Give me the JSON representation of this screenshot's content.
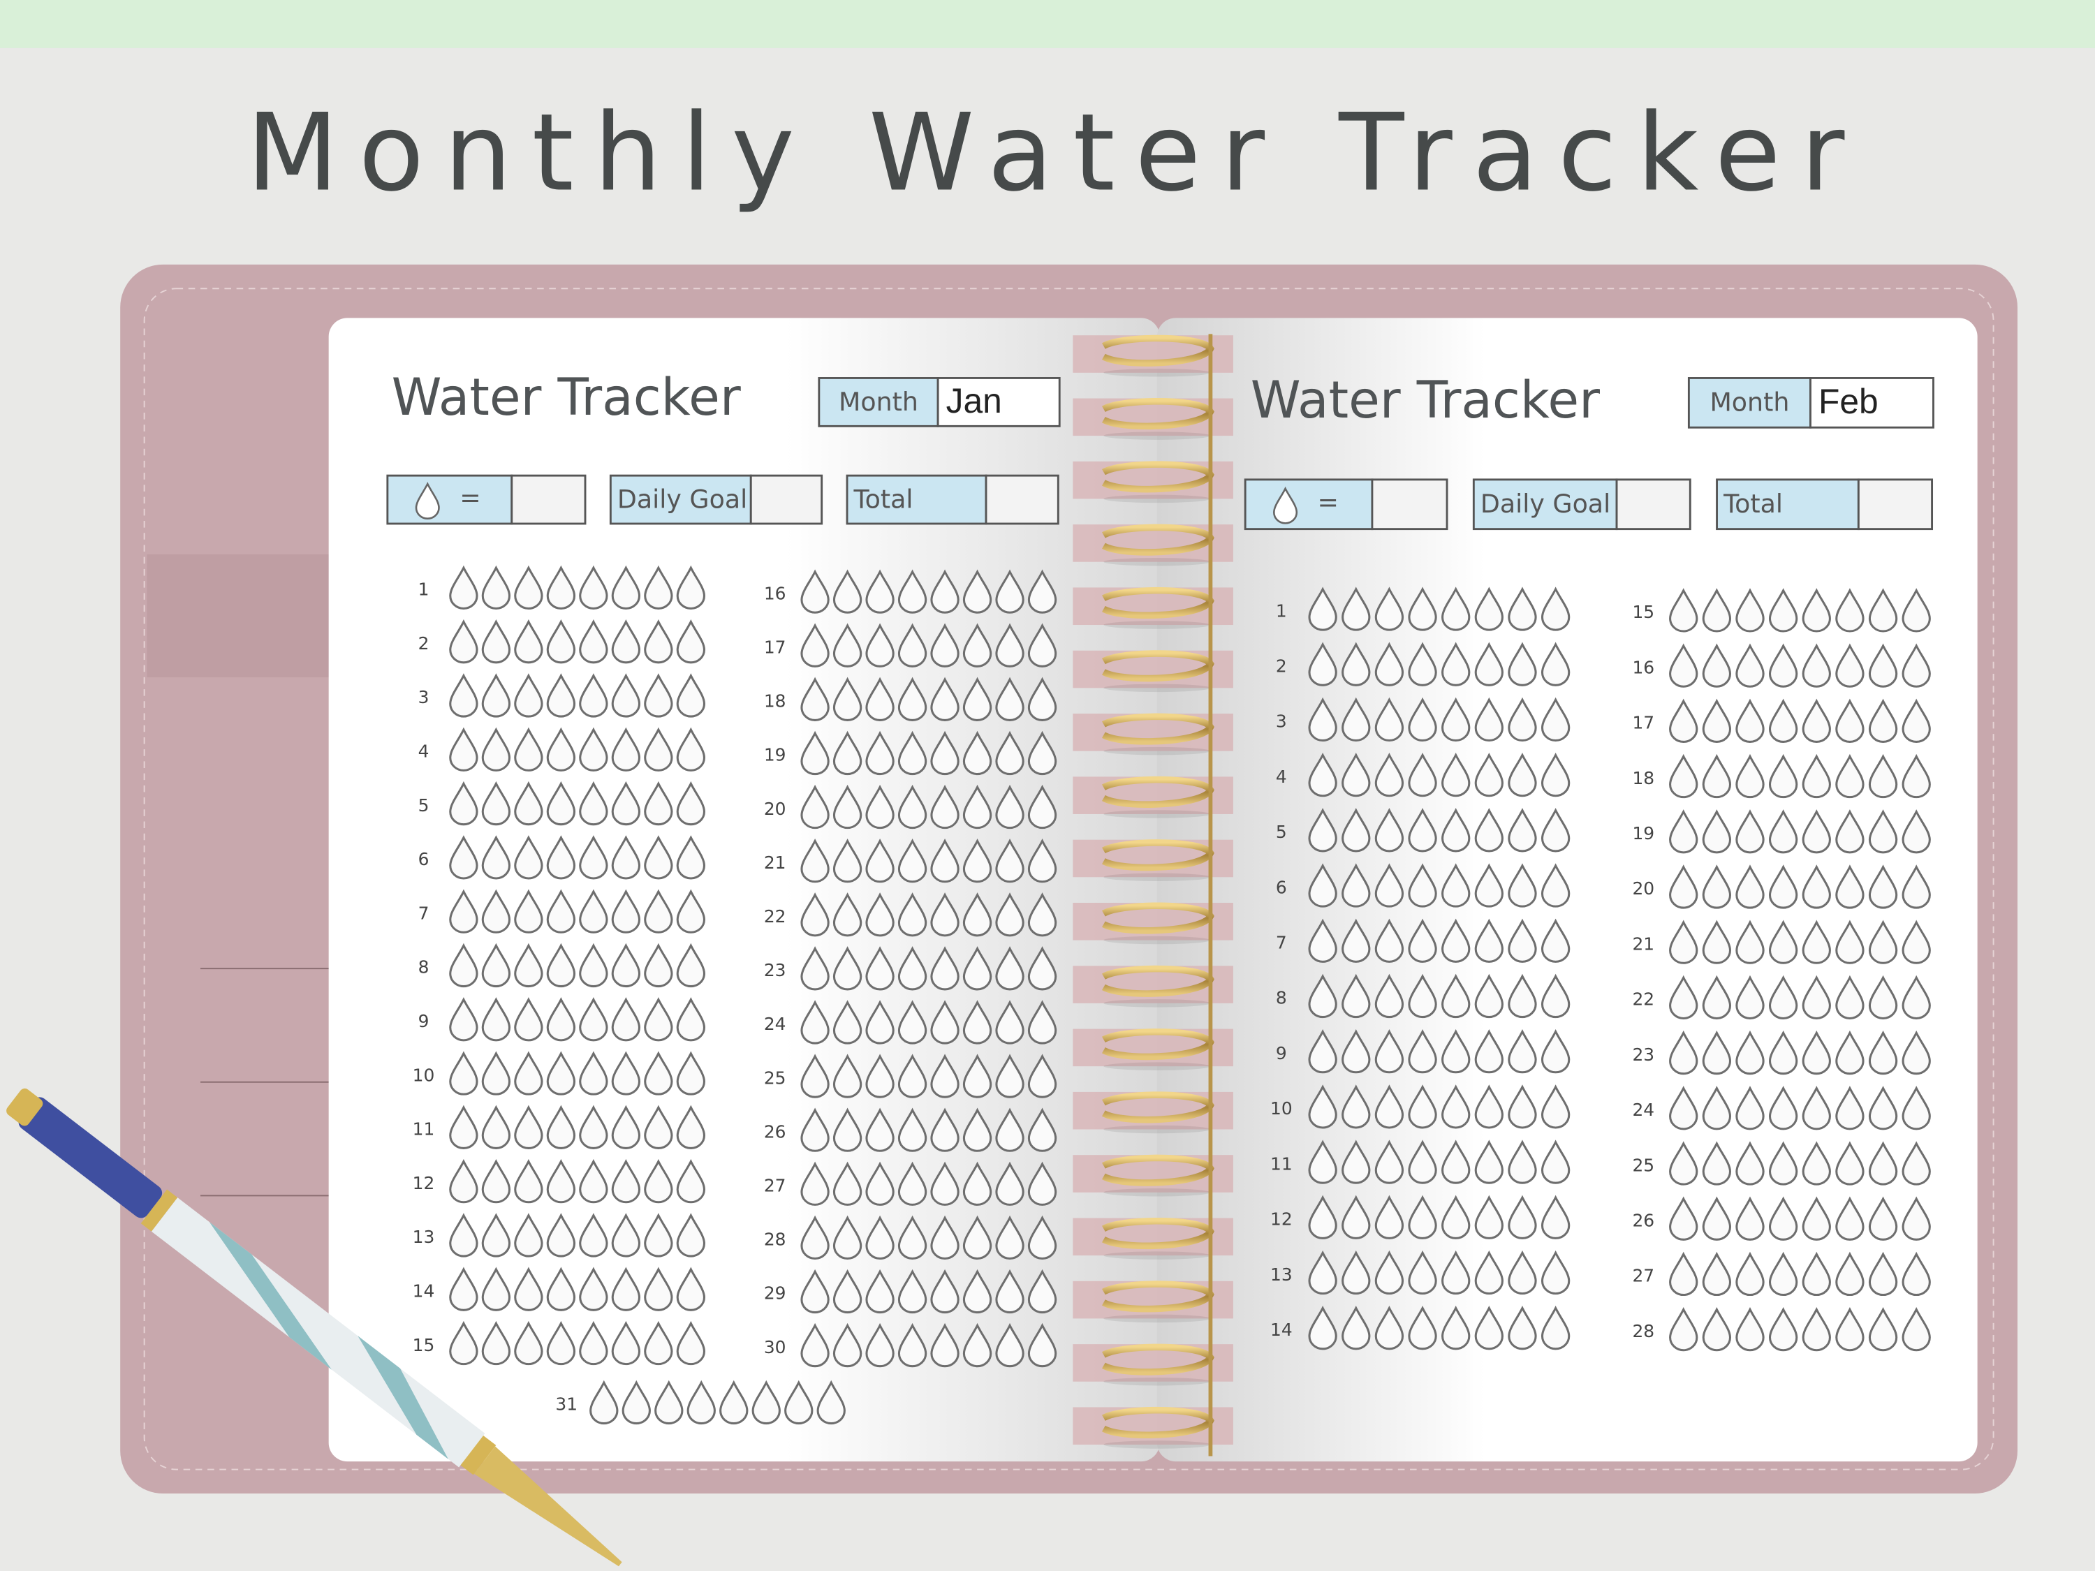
{
  "header": {
    "title": "Monthly Water Tracker"
  },
  "pages": [
    {
      "title": "Water Tracker",
      "month_label": "Month",
      "month": "Jan",
      "unit_label": "=",
      "daily_goal_label": "Daily Goal",
      "total_label": "Total",
      "days": [
        1,
        2,
        3,
        4,
        5,
        6,
        7,
        8,
        9,
        10,
        11,
        12,
        13,
        14,
        15,
        16,
        17,
        18,
        19,
        20,
        21,
        22,
        23,
        24,
        25,
        26,
        27,
        28,
        29,
        30,
        31
      ]
    },
    {
      "title": "Water Tracker",
      "month_label": "Month",
      "month": "Feb",
      "unit_label": "=",
      "daily_goal_label": "Daily Goal",
      "total_label": "Total",
      "days": [
        1,
        2,
        3,
        4,
        5,
        6,
        7,
        8,
        9,
        10,
        11,
        12,
        13,
        14,
        15,
        16,
        17,
        18,
        19,
        20,
        21,
        22,
        23,
        24,
        25,
        26,
        27,
        28
      ]
    }
  ]
}
